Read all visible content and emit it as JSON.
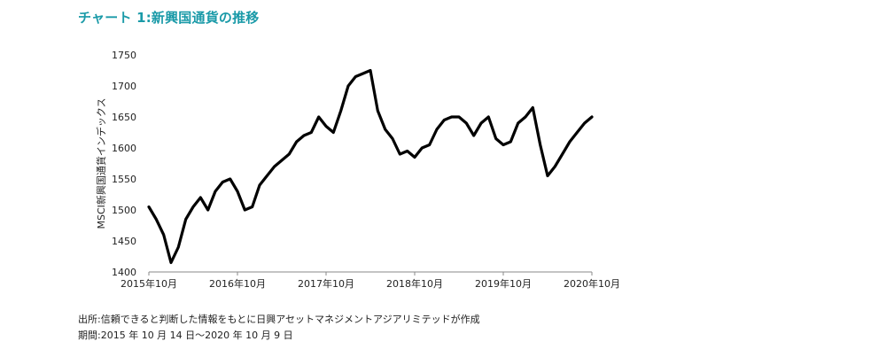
{
  "title": "チャート 1:新興国通貨の推移",
  "footer": {
    "source": "出所:信頼できると判断した情報をもとに日興アセットマネジメントアジアリミテッドが作成",
    "period": "期間:2015 年 10 月 14 日〜2020 年 10 月 9 日"
  },
  "colors": {
    "title": "#1a9aa8",
    "line": "#000000",
    "axis": "#888888"
  },
  "chart_data": {
    "type": "line",
    "ylabel": "MSCI新興国通貨インデックス",
    "xlabel": "",
    "ylim": [
      1400,
      1750
    ],
    "yticks": [
      1400,
      1450,
      1500,
      1550,
      1600,
      1650,
      1700,
      1750
    ],
    "xlim": [
      "2015-10",
      "2020-10"
    ],
    "xticks": [
      "2015年10月",
      "2016年10月",
      "2017年10月",
      "2018年10月",
      "2019年10月",
      "2020年10月"
    ],
    "grid": false,
    "series": [
      {
        "x": [
          "2015-10",
          "2015-11",
          "2015-12",
          "2016-01",
          "2016-02",
          "2016-03",
          "2016-04",
          "2016-05",
          "2016-06",
          "2016-07",
          "2016-08",
          "2016-09",
          "2016-10",
          "2016-11",
          "2016-12",
          "2017-01",
          "2017-02",
          "2017-03",
          "2017-04",
          "2017-05",
          "2017-06",
          "2017-07",
          "2017-08",
          "2017-09",
          "2017-10",
          "2017-11",
          "2017-12",
          "2018-01",
          "2018-02",
          "2018-03",
          "2018-04",
          "2018-05",
          "2018-06",
          "2018-07",
          "2018-08",
          "2018-09",
          "2018-10",
          "2018-11",
          "2018-12",
          "2019-01",
          "2019-02",
          "2019-03",
          "2019-04",
          "2019-05",
          "2019-06",
          "2019-07",
          "2019-08",
          "2019-09",
          "2019-10",
          "2019-11",
          "2019-12",
          "2020-01",
          "2020-02",
          "2020-03",
          "2020-04",
          "2020-05",
          "2020-06",
          "2020-07",
          "2020-08",
          "2020-09",
          "2020-10"
        ],
        "values": [
          1505,
          1485,
          1460,
          1415,
          1440,
          1485,
          1505,
          1520,
          1500,
          1530,
          1545,
          1550,
          1530,
          1500,
          1505,
          1540,
          1555,
          1570,
          1580,
          1590,
          1610,
          1620,
          1625,
          1650,
          1635,
          1625,
          1660,
          1700,
          1715,
          1720,
          1725,
          1660,
          1630,
          1615,
          1590,
          1595,
          1585,
          1600,
          1605,
          1630,
          1645,
          1650,
          1650,
          1640,
          1620,
          1640,
          1650,
          1615,
          1605,
          1610,
          1640,
          1650,
          1665,
          1605,
          1555,
          1570,
          1590,
          1610,
          1625,
          1640,
          1650
        ]
      }
    ]
  }
}
